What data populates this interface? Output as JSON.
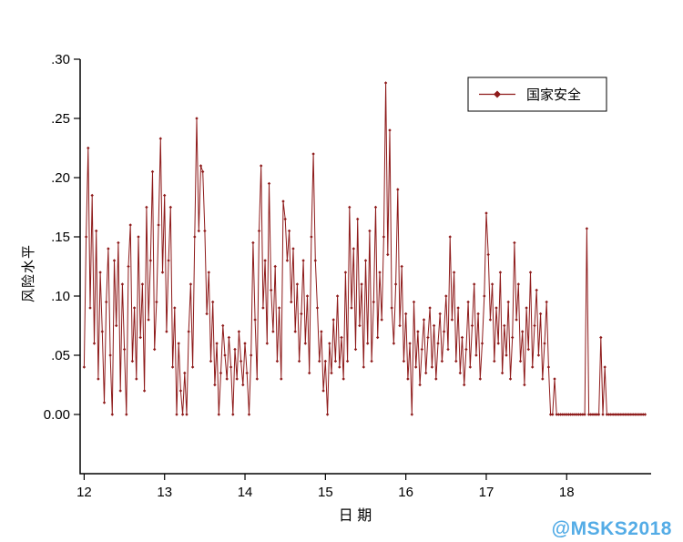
{
  "chart_data": {
    "type": "line",
    "title": "",
    "xlabel": "日 期",
    "ylabel": "风险水平",
    "legend_label": "国家安全",
    "legend_position": "top-right",
    "line_color": "#8E1A1A",
    "axis_color": "#000000",
    "grid": false,
    "xlim": [
      11.95,
      19.05
    ],
    "ylim": [
      -0.05,
      0.3
    ],
    "x_ticks": [
      12,
      13,
      14,
      15,
      16,
      17,
      18
    ],
    "y_tick_values": [
      0,
      0.05,
      0.1,
      0.15,
      0.2,
      0.25,
      0.3
    ],
    "y_tick_labels": [
      "0.00",
      ".05",
      ".10",
      ".15",
      ".20",
      ".25",
      ".30"
    ],
    "series": [
      {
        "name": "国家安全",
        "x_start": 12,
        "x_step": 0.025,
        "values": [
          0.04,
          0.15,
          0.225,
          0.09,
          0.185,
          0.06,
          0.155,
          0.03,
          0.12,
          0.07,
          0.01,
          0.095,
          0.14,
          0.05,
          0,
          0.13,
          0.075,
          0.145,
          0.02,
          0.11,
          0.055,
          0,
          0.125,
          0.16,
          0.045,
          0.09,
          0.03,
          0.15,
          0.065,
          0.11,
          0.02,
          0.175,
          0.08,
          0.13,
          0.205,
          0.055,
          0.095,
          0.16,
          0.233,
          0.12,
          0.185,
          0.07,
          0.13,
          0.175,
          0.04,
          0.09,
          0,
          0.06,
          0.02,
          0,
          0.035,
          0,
          0.07,
          0.11,
          0.04,
          0.15,
          0.25,
          0.155,
          0.21,
          0.205,
          0.155,
          0.085,
          0.12,
          0.045,
          0.095,
          0.025,
          0.06,
          0,
          0.035,
          0.075,
          0.05,
          0.03,
          0.065,
          0.04,
          0,
          0.055,
          0.03,
          0.07,
          0.045,
          0.025,
          0.06,
          0.035,
          0,
          0.05,
          0.145,
          0.08,
          0.03,
          0.155,
          0.21,
          0.09,
          0.13,
          0.06,
          0.195,
          0.105,
          0.07,
          0.125,
          0.045,
          0.09,
          0.03,
          0.18,
          0.165,
          0.13,
          0.155,
          0.095,
          0.14,
          0.07,
          0.11,
          0.045,
          0.085,
          0.13,
          0.06,
          0.1,
          0.035,
          0.15,
          0.22,
          0.13,
          0.09,
          0.045,
          0.07,
          0.02,
          0.045,
          0,
          0.06,
          0.035,
          0.08,
          0.045,
          0.1,
          0.04,
          0.065,
          0.03,
          0.12,
          0.045,
          0.175,
          0.09,
          0.14,
          0.055,
          0.165,
          0.075,
          0.11,
          0.04,
          0.13,
          0.06,
          0.155,
          0.045,
          0.095,
          0.175,
          0.065,
          0.12,
          0.08,
          0.15,
          0.28,
          0.135,
          0.24,
          0.09,
          0.06,
          0.11,
          0.19,
          0.075,
          0.125,
          0.045,
          0.085,
          0.03,
          0.06,
          0,
          0.095,
          0.04,
          0.07,
          0.025,
          0.055,
          0.08,
          0.035,
          0.065,
          0.09,
          0.04,
          0.075,
          0.03,
          0.06,
          0.085,
          0.045,
          0.07,
          0.1,
          0.055,
          0.15,
          0.08,
          0.12,
          0.045,
          0.09,
          0.035,
          0.065,
          0.025,
          0.055,
          0.095,
          0.04,
          0.075,
          0.11,
          0.05,
          0.085,
          0.03,
          0.06,
          0.1,
          0.17,
          0.135,
          0.08,
          0.11,
          0.045,
          0.09,
          0.06,
          0.12,
          0.035,
          0.075,
          0.05,
          0.095,
          0.03,
          0.065,
          0.145,
          0.08,
          0.11,
          0.045,
          0.07,
          0.025,
          0.09,
          0.055,
          0.12,
          0.04,
          0.075,
          0.105,
          0.05,
          0.085,
          0.03,
          0.06,
          0.095,
          0.04,
          0,
          0,
          0.03,
          0,
          0,
          0,
          0,
          0,
          0,
          0,
          0,
          0,
          0,
          0,
          0,
          0,
          0,
          0,
          0.157,
          0,
          0,
          0,
          0,
          0,
          0,
          0.065,
          0,
          0.04,
          0,
          0,
          0,
          0,
          0,
          0,
          0,
          0,
          0,
          0,
          0,
          0,
          0,
          0,
          0,
          0,
          0,
          0,
          0,
          0
        ]
      }
    ]
  },
  "watermark": {
    "text": "@MSKS2018",
    "color": "#54ACE6"
  }
}
